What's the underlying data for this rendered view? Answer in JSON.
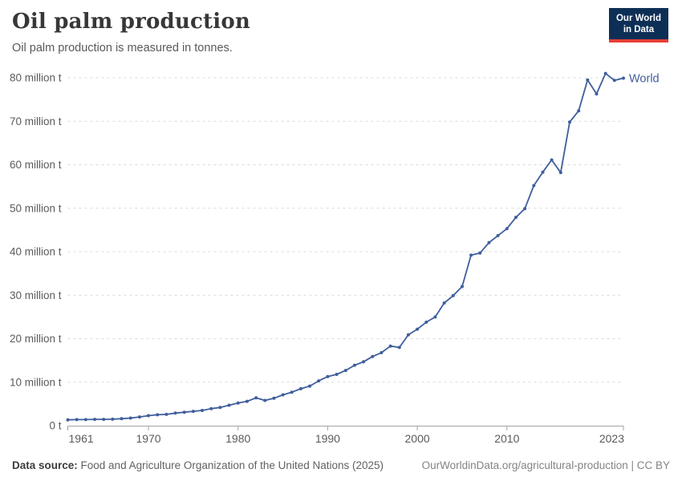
{
  "header": {
    "title": "Oil palm production",
    "subtitle": "Oil palm production is measured in tonnes.",
    "logo": {
      "line1": "Our World",
      "line2": "in Data",
      "bg_color": "#0e2f55",
      "bar_color": "#e63e36"
    }
  },
  "chart_data": {
    "type": "line",
    "title": "Oil palm production",
    "unit": "tonnes",
    "grid": "horizontal-dashed",
    "legend_position": "end-of-line-label",
    "xlim": [
      1961,
      2023
    ],
    "ylim": [
      0,
      80000000
    ],
    "x_ticks": [
      1961,
      1970,
      1980,
      1990,
      2000,
      2010,
      2023
    ],
    "y_ticks": [
      0,
      10,
      20,
      30,
      40,
      50,
      60,
      70,
      80
    ],
    "y_tick_labels": [
      "0 t",
      "10 million t",
      "20 million t",
      "30 million t",
      "40 million t",
      "50 million t",
      "60 million t",
      "70 million t",
      "80 million t"
    ],
    "series": [
      {
        "name": "World",
        "color": "#3F5E9C",
        "x": [
          1961,
          1962,
          1963,
          1964,
          1965,
          1966,
          1967,
          1968,
          1969,
          1970,
          1971,
          1972,
          1973,
          1974,
          1975,
          1976,
          1977,
          1978,
          1979,
          1980,
          1981,
          1982,
          1983,
          1984,
          1985,
          1986,
          1987,
          1988,
          1989,
          1990,
          1991,
          1992,
          1993,
          1994,
          1995,
          1996,
          1997,
          1998,
          1999,
          2000,
          2001,
          2002,
          2003,
          2004,
          2005,
          2006,
          2007,
          2008,
          2009,
          2010,
          2011,
          2012,
          2013,
          2014,
          2015,
          2016,
          2017,
          2018,
          2019,
          2020,
          2021,
          2022,
          2023
        ],
        "values_million_t": [
          1.35,
          1.4,
          1.4,
          1.45,
          1.45,
          1.5,
          1.6,
          1.75,
          2.0,
          2.3,
          2.5,
          2.6,
          2.9,
          3.1,
          3.3,
          3.5,
          3.9,
          4.2,
          4.7,
          5.2,
          5.6,
          6.4,
          5.8,
          6.3,
          7.1,
          7.7,
          8.5,
          9.1,
          10.3,
          11.3,
          11.8,
          12.7,
          13.9,
          14.7,
          15.9,
          16.8,
          18.3,
          18.0,
          20.9,
          22.2,
          23.8,
          25.0,
          28.2,
          29.9,
          32.0,
          39.2,
          39.7,
          42.1,
          43.7,
          45.3,
          47.9,
          49.9,
          55.2,
          58.3,
          61.1,
          58.2,
          69.8,
          72.4,
          79.5,
          76.3,
          81.0,
          79.4,
          79.9
        ]
      }
    ],
    "colors": {
      "grid": "#d9d9d9",
      "axis": "#a3a3a3",
      "tick_label": "#5b5b5b"
    }
  },
  "footer": {
    "source_label": "Data source:",
    "source_text": " Food and Agriculture Organization of the United Nations (2025)",
    "link_text": "OurWorldinData.org/agricultural-production | CC BY"
  }
}
